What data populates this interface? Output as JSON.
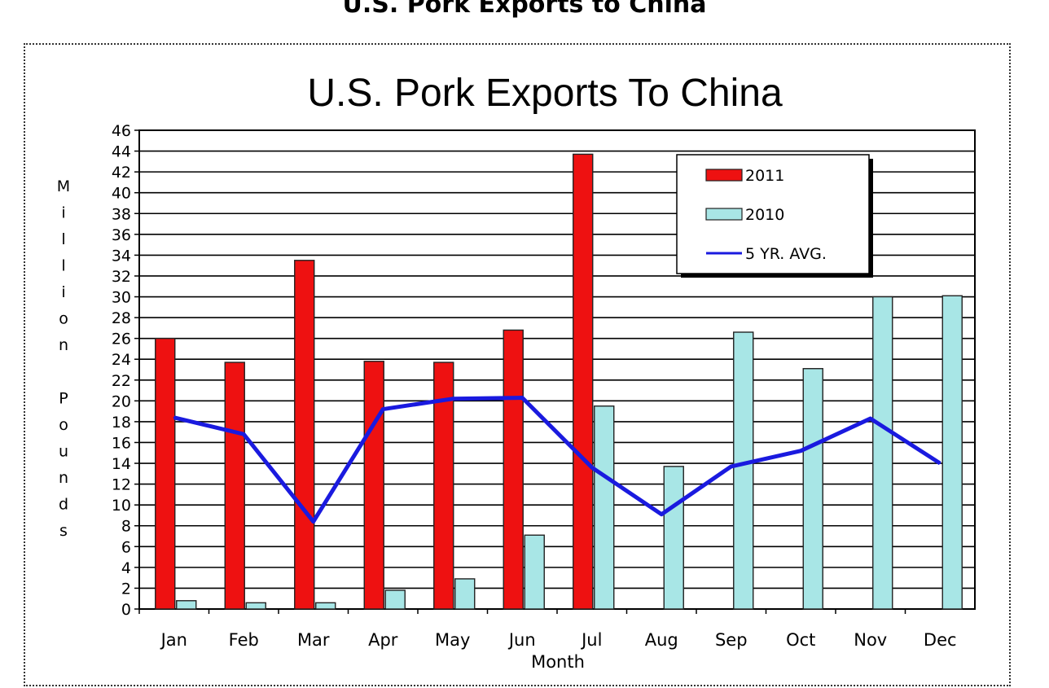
{
  "page_heading": "U.S. Pork Exports to China",
  "chart_data": {
    "type": "bar",
    "title": "U.S. Pork Exports To China",
    "xlabel": "Month",
    "ylabel": "Million Pounds",
    "ylim": [
      0,
      46
    ],
    "ytick_step": 2,
    "grid": true,
    "legend_position": "top-right",
    "categories": [
      "Jan",
      "Feb",
      "Mar",
      "Apr",
      "May",
      "Jun",
      "Jul",
      "Aug",
      "Sep",
      "Oct",
      "Nov",
      "Dec"
    ],
    "series": [
      {
        "name": "2011",
        "kind": "bar",
        "color": "#ee1111",
        "values": [
          26.0,
          23.7,
          33.5,
          23.8,
          23.7,
          26.8,
          43.7,
          null,
          null,
          null,
          null,
          null
        ]
      },
      {
        "name": "2010",
        "kind": "bar",
        "color": "#a8e6e6",
        "values": [
          0.8,
          0.6,
          0.6,
          1.8,
          2.9,
          7.1,
          19.5,
          13.7,
          26.6,
          23.1,
          30.0,
          30.1
        ]
      },
      {
        "name": "5 YR. AVG.",
        "kind": "line",
        "color": "#1a1adf",
        "values": [
          18.4,
          16.8,
          8.4,
          19.2,
          20.2,
          20.3,
          13.6,
          9.1,
          13.7,
          15.2,
          18.3,
          14.0
        ]
      }
    ]
  }
}
